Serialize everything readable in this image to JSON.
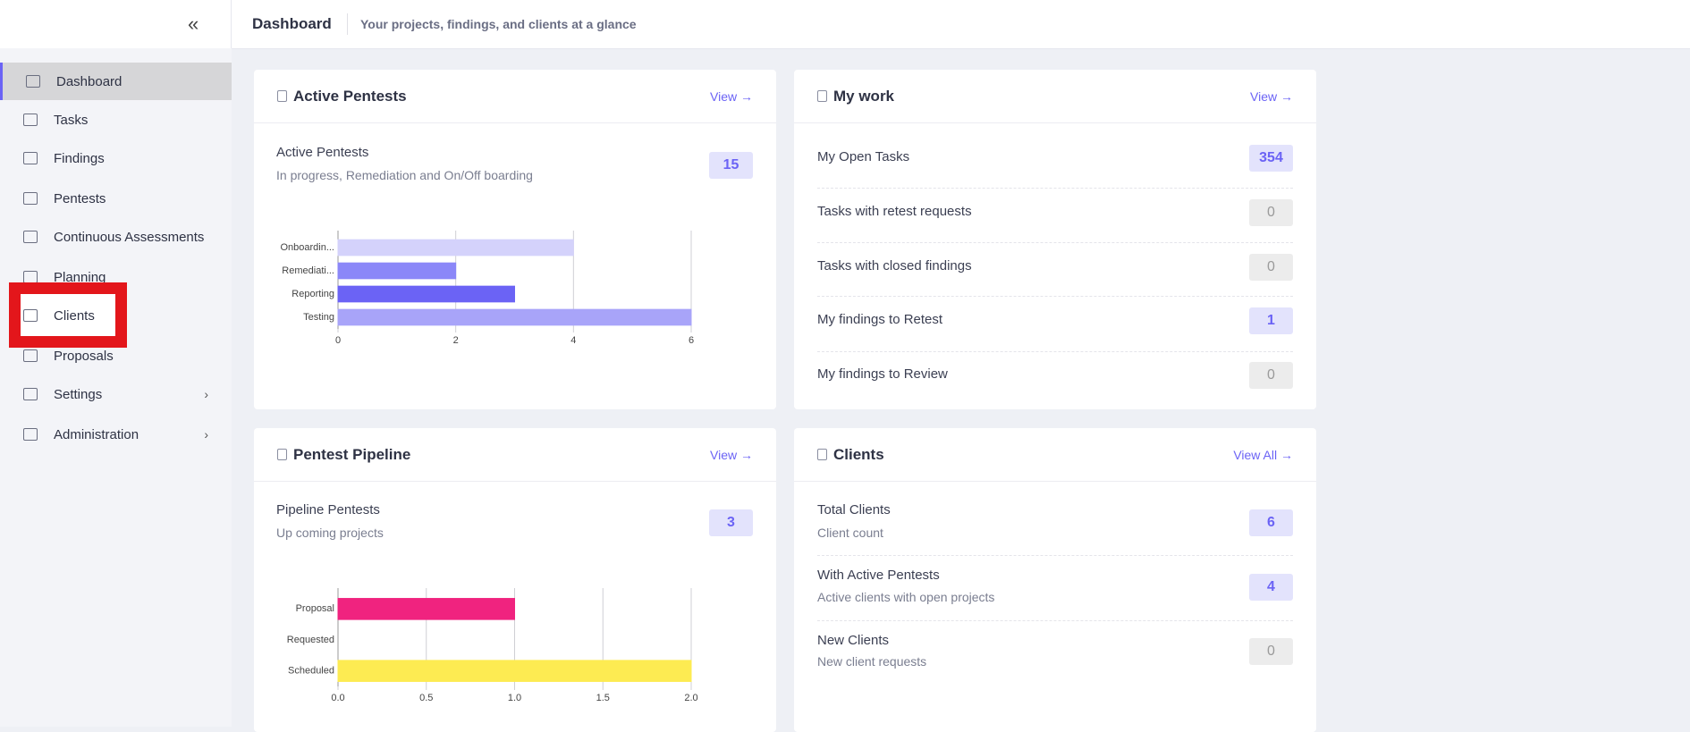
{
  "header": {
    "title": "Dashboard",
    "subtitle": "Your projects, findings, and clients at a glance"
  },
  "sidebar": {
    "items": [
      "Dashboard",
      "Tasks",
      "Findings",
      "Pentests",
      "Continuous Assessments",
      "Planning",
      "Clients",
      "Proposals",
      "Settings",
      "Administration"
    ]
  },
  "cards": {
    "active_pentests": {
      "title": "Active Pentests",
      "link": "View →",
      "label": "Active Pentests",
      "sublabel": "In progress, Remediation and On/Off boarding",
      "count": 15
    },
    "my_work": {
      "title": "My work",
      "link": "View →",
      "rows": [
        {
          "label": "My Open Tasks",
          "count": 354
        },
        {
          "label": "Tasks with retest requests",
          "count": 0
        },
        {
          "label": "Tasks with closed findings",
          "count": 0
        },
        {
          "label": "My findings to Retest",
          "count": 1
        },
        {
          "label": "My findings to Review",
          "count": 0
        }
      ]
    },
    "pentest_pipeline": {
      "title": "Pentest Pipeline",
      "link": "View →",
      "label": "Pipeline Pentests",
      "sublabel": "Up coming projects",
      "count": 3
    },
    "clients": {
      "title": "Clients",
      "link": "View All →",
      "rows": [
        {
          "label": "Total Clients",
          "sublabel": "Client count",
          "count": 6
        },
        {
          "label": "With Active Pentests",
          "sublabel": "Active clients with open projects",
          "count": 4
        },
        {
          "label": "New Clients",
          "sublabel": "New client requests",
          "count": 0
        }
      ]
    }
  },
  "chart_data": [
    {
      "type": "bar",
      "orientation": "horizontal",
      "categories": [
        "Onboardin...",
        "Remediati...",
        "Reporting",
        "Testing"
      ],
      "values": [
        4,
        2,
        3,
        6
      ],
      "colors": [
        "#d4d2fb",
        "#8b87f8",
        "#6b63f5",
        "#a8a4f9"
      ],
      "xlim": [
        0,
        6
      ],
      "xticks": [
        0,
        2,
        4,
        6
      ],
      "grid": true
    },
    {
      "type": "bar",
      "orientation": "horizontal",
      "categories": [
        "Proposal",
        "Requested",
        "Scheduled"
      ],
      "values": [
        1,
        0,
        2
      ],
      "colors": [
        "#f0237f",
        "#f5a623",
        "#fdeb52"
      ],
      "xlim": [
        0,
        2
      ],
      "xticks": [
        {
          "value": 0,
          "label": "0.0"
        },
        0.5,
        {
          "value": 1,
          "label": "1.0"
        },
        1.5,
        {
          "value": 2,
          "label": "2.0"
        }
      ],
      "grid": true
    }
  ]
}
